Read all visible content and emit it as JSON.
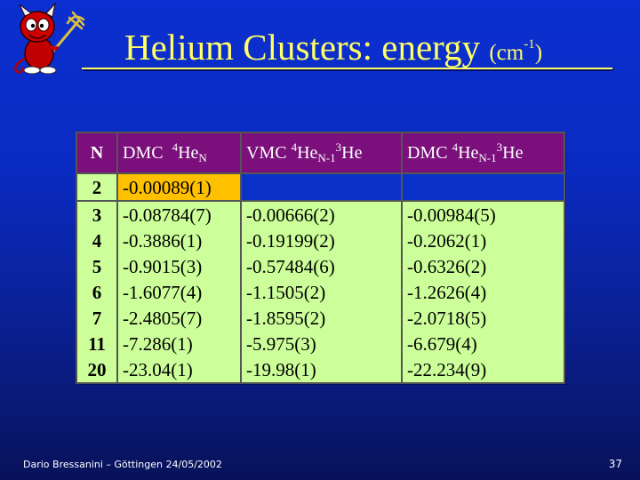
{
  "slide": {
    "title_main": "Helium Clusters: energy",
    "title_unit_open": "(cm",
    "title_unit_sup": "-1",
    "title_unit_close": ")",
    "footer_author": "Dario Bressanini – Göttingen 24/05/2002",
    "page_number": "37",
    "logo_icon": "devil-mascot-icon",
    "colors": {
      "title": "#ffff66",
      "header_bg": "#7b0f7b",
      "cell_bg": "#ccff99",
      "highlight": "#ffc000"
    }
  },
  "table": {
    "headers": {
      "n": "N",
      "dmc_he4": {
        "method": "DMC",
        "mass": "4",
        "element": "He",
        "subscript": "N"
      },
      "vmc_mixed": {
        "method": "VMC",
        "mass": "4",
        "element": "He",
        "subscript": "N-1",
        "mass2": "3",
        "element2": "He"
      },
      "dmc_mixed": {
        "method": "DMC",
        "mass": "4",
        "element": "He",
        "subscript": "N-1",
        "mass2": "3",
        "element2": "He"
      }
    },
    "rows": [
      {
        "n": "2",
        "dmc_he4": "-0.00089(1)",
        "vmc_mixed": "",
        "dmc_mixed": ""
      },
      {
        "n": "3",
        "dmc_he4": "-0.08784(7)",
        "vmc_mixed": "-0.00666(2)",
        "dmc_mixed": "-0.00984(5)"
      },
      {
        "n": "4",
        "dmc_he4": "-0.3886(1)",
        "vmc_mixed": "-0.19199(2)",
        "dmc_mixed": "-0.2062(1)"
      },
      {
        "n": "5",
        "dmc_he4": "-0.9015(3)",
        "vmc_mixed": "-0.57484(6)",
        "dmc_mixed": "-0.6326(2)"
      },
      {
        "n": "6",
        "dmc_he4": "-1.6077(4)",
        "vmc_mixed": "-1.1505(2)",
        "dmc_mixed": "-1.2626(4)"
      },
      {
        "n": "7",
        "dmc_he4": "-2.4805(7)",
        "vmc_mixed": "-1.8595(2)",
        "dmc_mixed": "-2.0718(5)"
      },
      {
        "n": "11",
        "dmc_he4": "-7.286(1)",
        "vmc_mixed": "-5.975(3)",
        "dmc_mixed": "-6.679(4)"
      },
      {
        "n": "20",
        "dmc_he4": "-23.04(1)",
        "vmc_mixed": "-19.98(1)",
        "dmc_mixed": "-22.234(9)"
      }
    ]
  }
}
